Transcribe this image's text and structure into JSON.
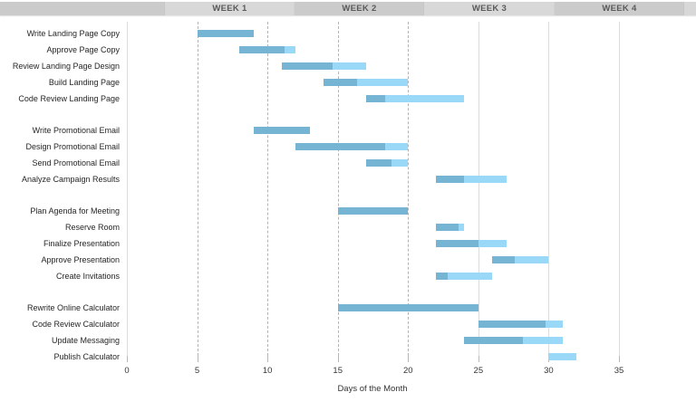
{
  "header": {
    "weeks": [
      {
        "label": "WEEK 1"
      },
      {
        "label": "WEEK 2"
      },
      {
        "label": "WEEK 3"
      },
      {
        "label": "WEEK 4"
      }
    ]
  },
  "axis": {
    "ticks": [
      0,
      5,
      10,
      15,
      20,
      25,
      30,
      35
    ],
    "title": "Days of the Month"
  },
  "colors": {
    "bar_complete": "#76b4d3",
    "bar_remaining": "#99d8f6",
    "header_light": "#d8d8d8",
    "header_dark": "#cbcbcb",
    "header_text": "#595959",
    "grid_dashed": "#b3b3b3",
    "grid_solid": "#dcdcdc"
  },
  "chart_data": {
    "type": "bar",
    "subtype": "gantt",
    "title": "",
    "xlabel": "Days of the Month",
    "xlim": [
      0,
      35
    ],
    "legend": "none",
    "grid": {
      "dashed_days": [
        5,
        10,
        15,
        20
      ],
      "solid_days": [
        25,
        30,
        35
      ],
      "axis_line_day": 0
    },
    "bar_meaning": {
      "dark": "completed portion",
      "light": "remaining portion"
    },
    "groups": [
      {
        "tasks": [
          {
            "name": "Write Landing Page Copy",
            "start": 5,
            "end": 9,
            "progress": 1.0
          },
          {
            "name": "Approve Page Copy",
            "start": 8,
            "end": 12,
            "progress": 0.8
          },
          {
            "name": "Review Landing Page Design",
            "start": 11,
            "end": 17,
            "progress": 0.6
          },
          {
            "name": "Build Landing Page",
            "start": 14,
            "end": 20,
            "progress": 0.4
          },
          {
            "name": "Code Review Landing Page",
            "start": 17,
            "end": 24,
            "progress": 0.2
          }
        ]
      },
      {
        "tasks": [
          {
            "name": "Write Promotional Email",
            "start": 9,
            "end": 13,
            "progress": 1.0
          },
          {
            "name": "Design Promotional Email",
            "start": 12,
            "end": 20,
            "progress": 0.8
          },
          {
            "name": "Send Promotional Email",
            "start": 17,
            "end": 20,
            "progress": 0.6
          },
          {
            "name": "Analyze Campaign Results",
            "start": 22,
            "end": 27,
            "progress": 0.4
          }
        ]
      },
      {
        "tasks": [
          {
            "name": "Plan Agenda for Meeting",
            "start": 15,
            "end": 20,
            "progress": 1.0
          },
          {
            "name": "Reserve Room",
            "start": 22,
            "end": 24,
            "progress": 0.8
          },
          {
            "name": "Finalize Presentation",
            "start": 22,
            "end": 27,
            "progress": 0.6
          },
          {
            "name": "Approve Presentation",
            "start": 26,
            "end": 30,
            "progress": 0.4
          },
          {
            "name": "Create Invitations",
            "start": 22,
            "end": 26,
            "progress": 0.2
          }
        ]
      },
      {
        "tasks": [
          {
            "name": "Rewrite Online Calculator",
            "start": 15,
            "end": 25,
            "progress": 1.0
          },
          {
            "name": "Code Review Calculator",
            "start": 25,
            "end": 31,
            "progress": 0.8
          },
          {
            "name": "Update Messaging",
            "start": 24,
            "end": 31,
            "progress": 0.6
          },
          {
            "name": "Publish Calculator",
            "start": 30,
            "end": 32,
            "progress": 0.0
          }
        ]
      }
    ]
  }
}
